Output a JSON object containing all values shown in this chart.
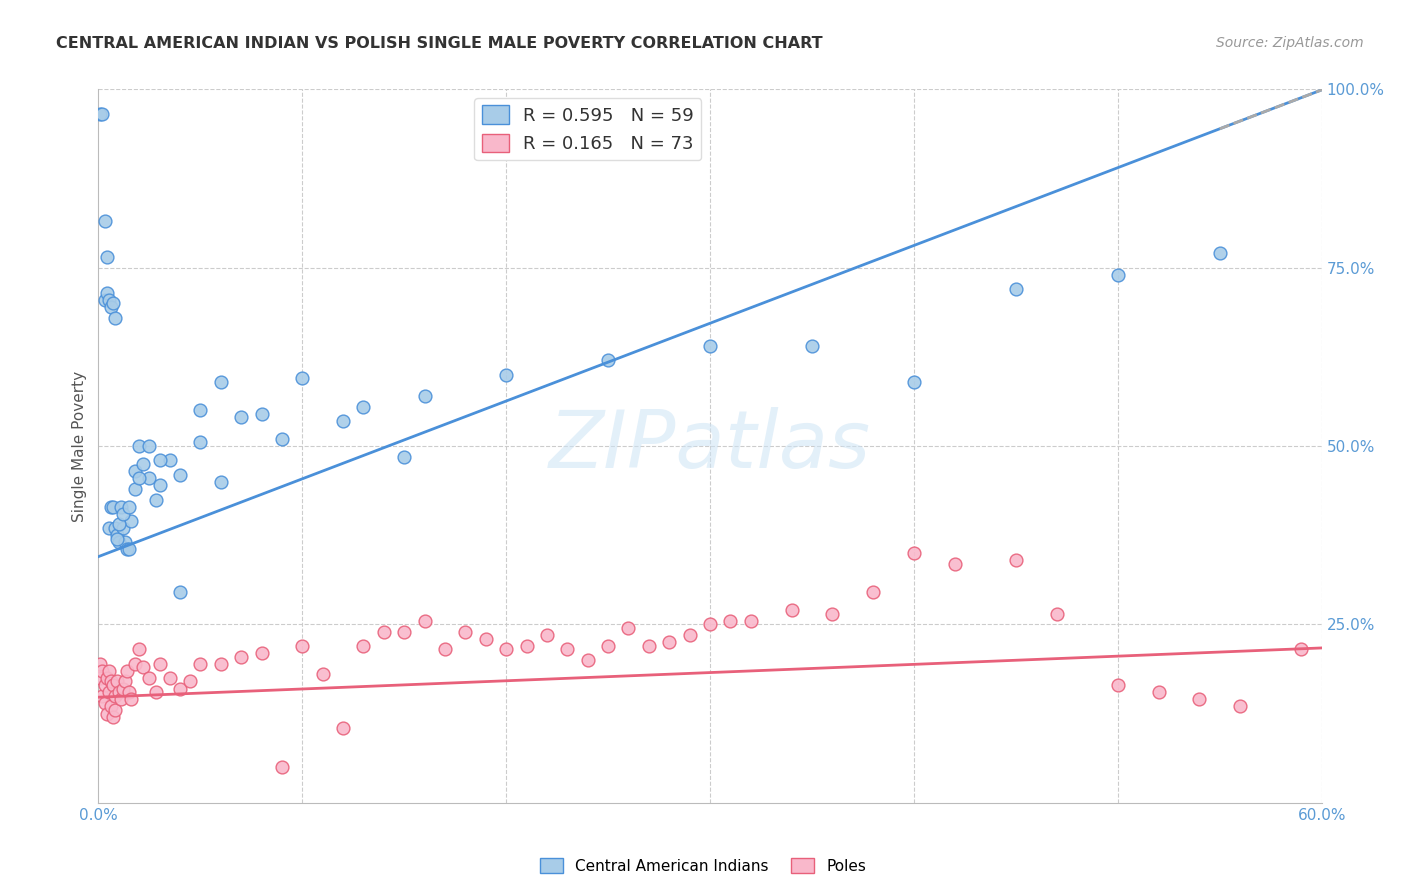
{
  "title": "CENTRAL AMERICAN INDIAN VS POLISH SINGLE MALE POVERTY CORRELATION CHART",
  "source": "Source: ZipAtlas.com",
  "ylabel": "Single Male Poverty",
  "ytick_labels": [
    "",
    "25.0%",
    "50.0%",
    "75.0%",
    "100.0%"
  ],
  "ytick_vals": [
    0.0,
    0.25,
    0.5,
    0.75,
    1.0
  ],
  "xtick_vals": [
    0.0,
    0.1,
    0.2,
    0.3,
    0.4,
    0.5,
    0.6
  ],
  "legend_blue": "R = 0.595   N = 59",
  "legend_pink": "R = 0.165   N = 73",
  "legend_label_blue": "Central American Indians",
  "legend_label_pink": "Poles",
  "blue_face_color": "#a8cce8",
  "blue_edge_color": "#4a90d9",
  "pink_face_color": "#f9b8cb",
  "pink_edge_color": "#e8607a",
  "blue_line_color": "#4a90d9",
  "pink_line_color": "#e8607a",
  "blue_intercept": 0.345,
  "blue_slope": 1.09,
  "pink_intercept": 0.148,
  "pink_slope": 0.115,
  "blue_x": [
    0.001,
    0.002,
    0.003,
    0.004,
    0.005,
    0.006,
    0.007,
    0.008,
    0.009,
    0.01,
    0.011,
    0.012,
    0.013,
    0.014,
    0.015,
    0.016,
    0.018,
    0.02,
    0.022,
    0.025,
    0.028,
    0.03,
    0.035,
    0.04,
    0.05,
    0.06,
    0.07,
    0.09,
    0.12,
    0.15,
    0.003,
    0.004,
    0.005,
    0.006,
    0.007,
    0.008,
    0.009,
    0.01,
    0.012,
    0.015,
    0.018,
    0.02,
    0.025,
    0.03,
    0.04,
    0.05,
    0.06,
    0.08,
    0.1,
    0.13,
    0.16,
    0.2,
    0.25,
    0.3,
    0.35,
    0.4,
    0.45,
    0.5,
    0.55
  ],
  "blue_y": [
    0.965,
    0.965,
    0.815,
    0.765,
    0.385,
    0.415,
    0.415,
    0.385,
    0.375,
    0.365,
    0.415,
    0.385,
    0.365,
    0.355,
    0.355,
    0.395,
    0.465,
    0.5,
    0.475,
    0.455,
    0.425,
    0.445,
    0.48,
    0.295,
    0.505,
    0.45,
    0.54,
    0.51,
    0.535,
    0.485,
    0.705,
    0.715,
    0.705,
    0.695,
    0.7,
    0.68,
    0.37,
    0.39,
    0.405,
    0.415,
    0.44,
    0.455,
    0.5,
    0.48,
    0.46,
    0.55,
    0.59,
    0.545,
    0.595,
    0.555,
    0.57,
    0.6,
    0.62,
    0.64,
    0.64,
    0.59,
    0.72,
    0.74,
    0.77
  ],
  "pink_x": [
    0.001,
    0.001,
    0.002,
    0.002,
    0.003,
    0.003,
    0.004,
    0.004,
    0.005,
    0.005,
    0.006,
    0.006,
    0.007,
    0.007,
    0.008,
    0.008,
    0.009,
    0.01,
    0.011,
    0.012,
    0.013,
    0.014,
    0.015,
    0.016,
    0.018,
    0.02,
    0.022,
    0.025,
    0.028,
    0.03,
    0.035,
    0.04,
    0.045,
    0.05,
    0.06,
    0.07,
    0.08,
    0.09,
    0.1,
    0.11,
    0.12,
    0.13,
    0.14,
    0.15,
    0.16,
    0.17,
    0.18,
    0.19,
    0.2,
    0.21,
    0.22,
    0.23,
    0.24,
    0.25,
    0.26,
    0.27,
    0.28,
    0.29,
    0.3,
    0.31,
    0.32,
    0.34,
    0.36,
    0.38,
    0.4,
    0.42,
    0.45,
    0.47,
    0.5,
    0.52,
    0.54,
    0.56,
    0.59
  ],
  "pink_y": [
    0.195,
    0.175,
    0.185,
    0.15,
    0.165,
    0.14,
    0.175,
    0.125,
    0.185,
    0.155,
    0.17,
    0.135,
    0.165,
    0.12,
    0.15,
    0.13,
    0.17,
    0.155,
    0.145,
    0.16,
    0.17,
    0.185,
    0.155,
    0.145,
    0.195,
    0.215,
    0.19,
    0.175,
    0.155,
    0.195,
    0.175,
    0.16,
    0.17,
    0.195,
    0.195,
    0.205,
    0.21,
    0.05,
    0.22,
    0.18,
    0.105,
    0.22,
    0.24,
    0.24,
    0.255,
    0.215,
    0.24,
    0.23,
    0.215,
    0.22,
    0.235,
    0.215,
    0.2,
    0.22,
    0.245,
    0.22,
    0.225,
    0.235,
    0.25,
    0.255,
    0.255,
    0.27,
    0.265,
    0.295,
    0.35,
    0.335,
    0.34,
    0.265,
    0.165,
    0.155,
    0.145,
    0.135,
    0.215
  ]
}
